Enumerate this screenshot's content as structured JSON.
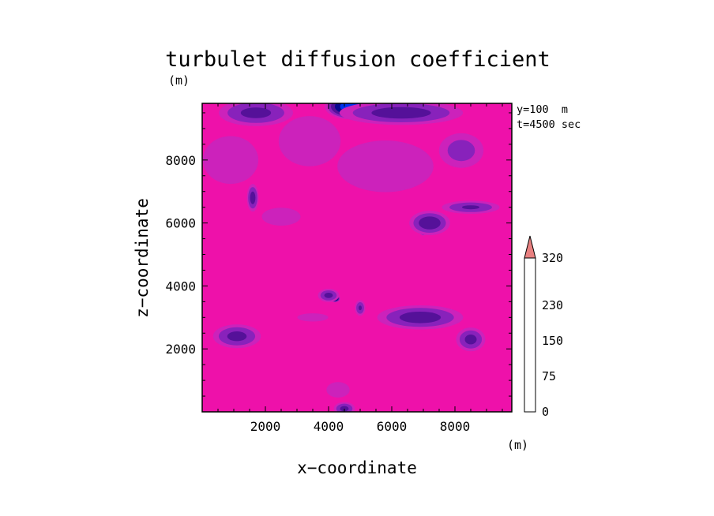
{
  "chart_data": {
    "type": "heatmap",
    "title": "turbulet diffusion coefficient",
    "xlabel": "x−coordinate",
    "ylabel": "z−coordinate",
    "x_unit": "(m)",
    "y_unit": "(m)",
    "annotations": [
      "y=100  m",
      "t=4500 sec"
    ],
    "xlim": [
      0,
      9800
    ],
    "ylim": [
      0,
      9800
    ],
    "x_ticks": [
      2000,
      4000,
      6000,
      8000
    ],
    "y_ticks": [
      2000,
      4000,
      6000,
      8000
    ],
    "x_tick_labels": [
      "2000",
      "4000",
      "6000",
      "8000"
    ],
    "y_tick_labels": [
      "2000",
      "4000",
      "6000",
      "8000"
    ],
    "grid": false,
    "colorbar": {
      "levels": [
        0,
        25,
        50,
        75,
        100,
        125,
        150,
        175,
        200,
        230,
        260,
        290,
        320
      ],
      "tick_values": [
        0,
        75,
        150,
        230,
        320
      ],
      "tick_labels": [
        "0",
        "75",
        "150",
        "230",
        "320"
      ],
      "colors": [
        "#ee11aa",
        "#cc22bb",
        "#8822bb",
        "#551199",
        "#0a0a90",
        "#0033ee",
        "#00ccee",
        "#22dd55",
        "#eeee00",
        "#ffbb00",
        "#ff7700",
        "#ee2200",
        "#cc0000"
      ],
      "extend": "max",
      "extend_color": "#e88080"
    },
    "features": [
      {
        "kind": "blob",
        "x": 2000,
        "z": 9700,
        "rx": 500,
        "rz": 400,
        "peak": 200
      },
      {
        "kind": "blob",
        "x": 4700,
        "z": 9700,
        "rx": 900,
        "rz": 450,
        "peak": 145
      },
      {
        "kind": "blob",
        "x": 1700,
        "z": 9500,
        "rx": 1400,
        "rz": 500,
        "peak": 85
      },
      {
        "kind": "blob",
        "x": 6300,
        "z": 9500,
        "rx": 2300,
        "rz": 450,
        "peak": 90
      },
      {
        "kind": "blob",
        "x": 8200,
        "z": 8300,
        "rx": 400,
        "rz": 320,
        "peak": 115
      },
      {
        "kind": "blob",
        "x": 8200,
        "z": 8300,
        "rx": 900,
        "rz": 700,
        "peak": 65
      },
      {
        "kind": "blob",
        "x": 1600,
        "z": 6800,
        "rx": 220,
        "rz": 520,
        "peak": 88
      },
      {
        "kind": "blob",
        "x": 7000,
        "z": 5900,
        "rx": 200,
        "rz": 320,
        "peak": 195
      },
      {
        "kind": "blob",
        "x": 7200,
        "z": 6000,
        "rx": 750,
        "rz": 450,
        "peak": 95
      },
      {
        "kind": "blob",
        "x": 8500,
        "z": 6500,
        "rx": 1100,
        "rz": 250,
        "peak": 80
      },
      {
        "kind": "blob",
        "x": 7300,
        "z": 3100,
        "rx": 700,
        "rz": 250,
        "peak": 300
      },
      {
        "kind": "blob",
        "x": 7200,
        "z": 3000,
        "rx": 1000,
        "rz": 400,
        "peak": 165
      },
      {
        "kind": "blob",
        "x": 6900,
        "z": 3000,
        "rx": 1600,
        "rz": 450,
        "peak": 90
      },
      {
        "kind": "blob",
        "x": 8500,
        "z": 2400,
        "rx": 250,
        "rz": 280,
        "peak": 175
      },
      {
        "kind": "blob",
        "x": 8500,
        "z": 2300,
        "rx": 550,
        "rz": 450,
        "peak": 85
      },
      {
        "kind": "blob",
        "x": 1000,
        "z": 2400,
        "rx": 450,
        "rz": 300,
        "peak": 160
      },
      {
        "kind": "blob",
        "x": 1100,
        "z": 2400,
        "rx": 900,
        "rz": 450,
        "peak": 85
      },
      {
        "kind": "blob",
        "x": 4200,
        "z": 3600,
        "rx": 180,
        "rz": 130,
        "peak": 150
      },
      {
        "kind": "blob",
        "x": 4000,
        "z": 3700,
        "rx": 400,
        "rz": 250,
        "peak": 85
      },
      {
        "kind": "blob",
        "x": 5000,
        "z": 3300,
        "rx": 200,
        "rz": 300,
        "peak": 80
      },
      {
        "kind": "blob",
        "x": 4500,
        "z": 100,
        "rx": 400,
        "rz": 250,
        "peak": 85
      },
      {
        "kind": "blob",
        "x": 3400,
        "z": 8600,
        "rx": 1600,
        "rz": 1300,
        "peak": 40
      },
      {
        "kind": "blob",
        "x": 900,
        "z": 8000,
        "rx": 1500,
        "rz": 1300,
        "peak": 38
      },
      {
        "kind": "blob",
        "x": 5800,
        "z": 7800,
        "rx": 2600,
        "rz": 1400,
        "peak": 38
      },
      {
        "kind": "blob",
        "x": 2500,
        "z": 6200,
        "rx": 1500,
        "rz": 700,
        "peak": 30
      },
      {
        "kind": "blob",
        "x": 4300,
        "z": 700,
        "rx": 900,
        "rz": 600,
        "peak": 30
      },
      {
        "kind": "blob",
        "x": 3500,
        "z": 3000,
        "rx": 1500,
        "rz": 400,
        "peak": 28
      }
    ]
  }
}
